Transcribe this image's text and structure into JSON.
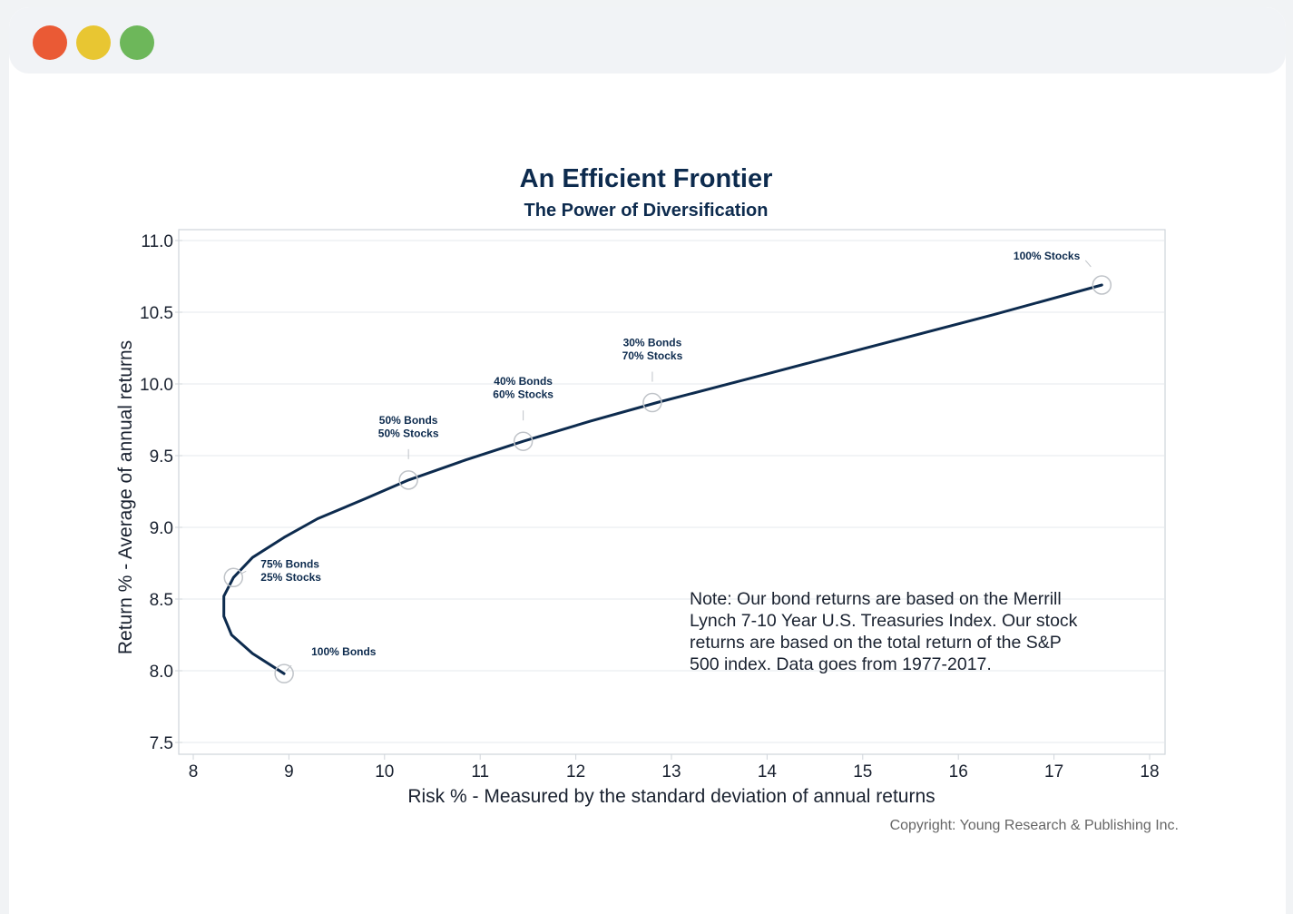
{
  "window": {
    "controls": [
      {
        "name": "close",
        "color": "#ea5a35"
      },
      {
        "name": "minimize",
        "color": "#e8c632"
      },
      {
        "name": "maximize",
        "color": "#6db75a"
      }
    ]
  },
  "colors": {
    "title": "#0d2b4e",
    "line": "#0d2b4e",
    "axis_text": "#1a2230",
    "note_text": "#1a2230",
    "copyright": "#666666",
    "grid": "#e6e9ec",
    "frame": "#cfd4da",
    "marker": "#bfc3c8"
  },
  "chart_data": {
    "type": "line",
    "title": "An Efficient Frontier",
    "subtitle": "The Power of Diversification",
    "xlabel": "Risk % - Measured by the standard deviation of annual returns",
    "ylabel": "Return % - Average of annual returns",
    "xlim": [
      8,
      18
    ],
    "ylim": [
      7.5,
      11.0
    ],
    "x_ticks": [
      8,
      9,
      10,
      11,
      12,
      13,
      14,
      15,
      16,
      17,
      18
    ],
    "y_ticks": [
      "7.5",
      "8.0",
      "8.5",
      "9.0",
      "9.5",
      "10.0",
      "10.5",
      "11.0"
    ],
    "grid": "horizontal",
    "series": [
      {
        "x": [
          8.95,
          8.62,
          8.4,
          8.32,
          8.32,
          8.42,
          8.62,
          8.95,
          9.3,
          9.8,
          10.25,
          10.85,
          11.45,
          12.15,
          12.85,
          14.0,
          15.2,
          16.35,
          17.5
        ],
        "y": [
          7.98,
          8.12,
          8.25,
          8.38,
          8.52,
          8.65,
          8.79,
          8.93,
          9.06,
          9.2,
          9.33,
          9.47,
          9.6,
          9.74,
          9.87,
          10.07,
          10.28,
          10.48,
          10.69
        ]
      }
    ],
    "markers": [
      {
        "x": 8.95,
        "y": 7.98,
        "lines": [
          "100% Bonds"
        ]
      },
      {
        "x": 8.42,
        "y": 8.65,
        "lines": [
          "75% Bonds",
          "25% Stocks"
        ]
      },
      {
        "x": 10.25,
        "y": 9.33,
        "lines": [
          "50% Bonds",
          "50% Stocks"
        ]
      },
      {
        "x": 11.45,
        "y": 9.6,
        "lines": [
          "40% Bonds",
          "60% Stocks"
        ]
      },
      {
        "x": 12.8,
        "y": 9.87,
        "lines": [
          "30% Bonds",
          "70% Stocks"
        ]
      },
      {
        "x": 17.5,
        "y": 10.69,
        "lines": [
          "100% Stocks"
        ]
      }
    ],
    "note": [
      "Note:  Our bond returns are based on the Merrill",
      "Lynch 7-10 Year U.S. Treasuries Index.  Our stock",
      "returns are based on the total return of the S&P",
      "500 index.  Data goes from 1977-2017."
    ],
    "copyright": "Copyright: Young Research & Publishing Inc."
  }
}
